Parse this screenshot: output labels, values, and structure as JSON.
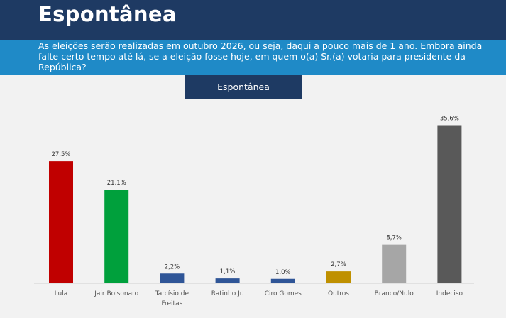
{
  "header": {
    "title": "Espontânea"
  },
  "banner": {
    "text": "As eleições serão realizadas em outubro 2026, ou seja, daqui a pouco mais de 1 ano. Embora ainda falte certo tempo até lá, se a eleição fosse hoje, em quem o(a) Sr.(a) votaria para presidente da República?"
  },
  "chart_data": {
    "type": "bar",
    "title": "Espontânea",
    "xlabel": "",
    "ylabel": "",
    "grid": false,
    "legend": "none",
    "ylim": [
      0,
      40
    ],
    "categories": [
      "Lula",
      "Jair Bolsonaro",
      "Tarcísio de Freitas",
      "Ratinho Jr.",
      "Ciro Gomes",
      "Outros",
      "Branco/Nulo",
      "Indeciso"
    ],
    "category_lines": [
      [
        "Lula"
      ],
      [
        "Jair Bolsonaro"
      ],
      [
        "Tarcísio de",
        "Freitas"
      ],
      [
        "Ratinho Jr."
      ],
      [
        "Ciro Gomes"
      ],
      [
        "Outros"
      ],
      [
        "Branco/Nulo"
      ],
      [
        "Indeciso"
      ]
    ],
    "values": [
      27.5,
      21.1,
      2.2,
      1.1,
      1.0,
      2.7,
      8.7,
      35.6
    ],
    "value_labels": [
      "27,5%",
      "21,1%",
      "2,2%",
      "1,1%",
      "1,0%",
      "2,7%",
      "8,7%",
      "35,6%"
    ],
    "colors": [
      "#c00000",
      "#00a03c",
      "#2f5597",
      "#2f5597",
      "#2f5597",
      "#bf9000",
      "#a6a6a6",
      "#595959"
    ]
  }
}
